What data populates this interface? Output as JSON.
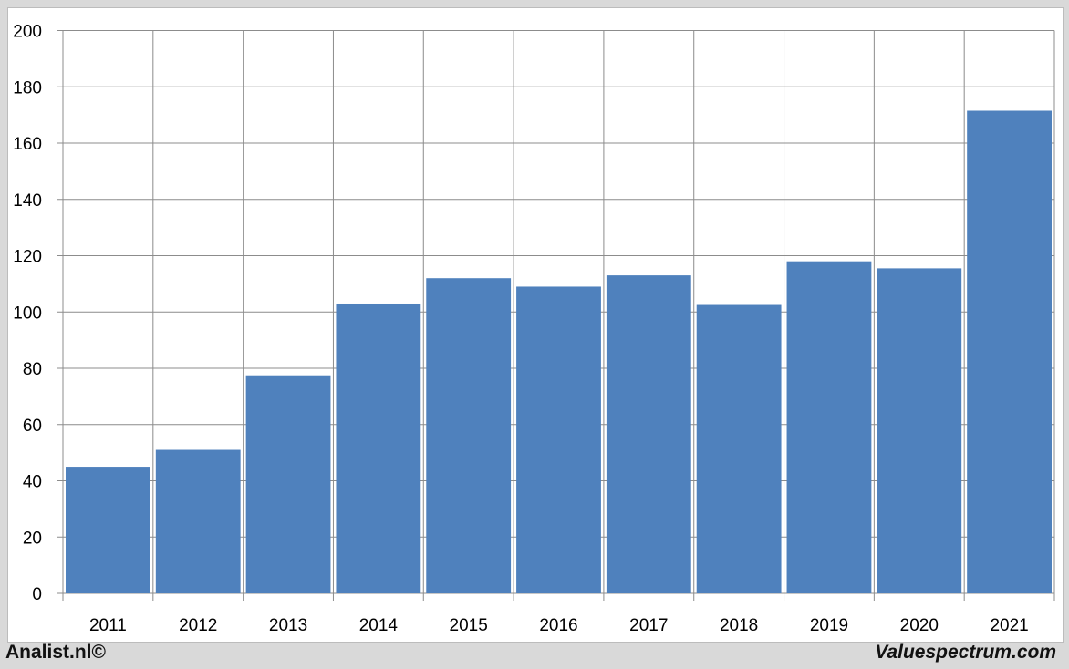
{
  "chart_data": {
    "type": "bar",
    "categories": [
      "2011",
      "2012",
      "2013",
      "2014",
      "2015",
      "2016",
      "2017",
      "2018",
      "2019",
      "2020",
      "2021"
    ],
    "values": [
      45,
      51,
      77.5,
      103,
      112,
      109,
      113,
      102.5,
      118,
      115.5,
      171.5
    ],
    "ylim": [
      0,
      200
    ],
    "yticks": [
      0,
      20,
      40,
      60,
      80,
      100,
      120,
      140,
      160,
      180,
      200
    ],
    "grid": true,
    "bar_color": "#4f81bd"
  },
  "footer": {
    "left": "Analist.nl©",
    "right": "Valuespectrum.com"
  }
}
